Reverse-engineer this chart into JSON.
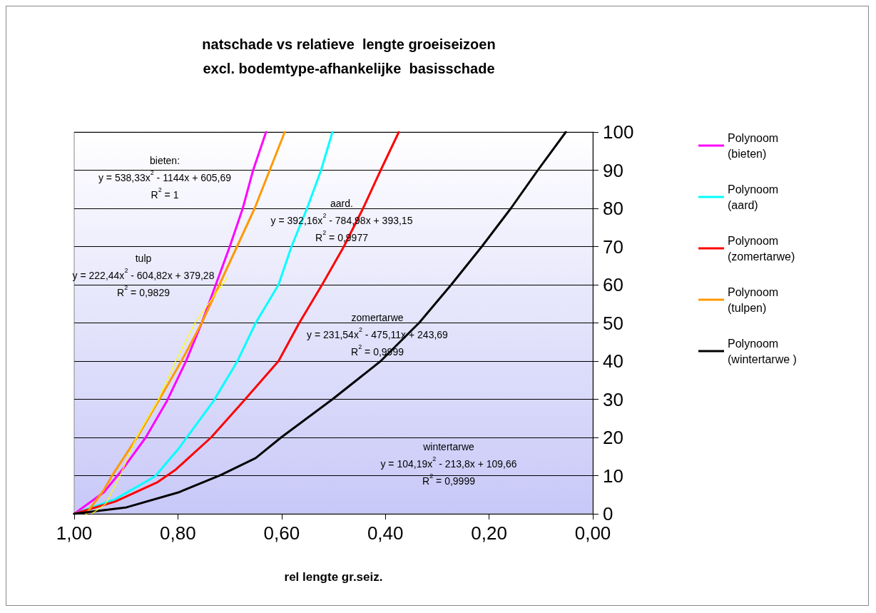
{
  "chart_data": {
    "type": "line",
    "title": "natschade vs relatieve  lengte groeiseizoen",
    "subtitle": "excl. bodemtype-afhankelijke  basisschade",
    "xlabel": "rel lengte gr.seiz.",
    "xlim": [
      1,
      0
    ],
    "xticks": [
      {
        "value": 1,
        "label": "1,00"
      },
      {
        "value": 0.8,
        "label": "0,80"
      },
      {
        "value": 0.6,
        "label": "0,60"
      },
      {
        "value": 0.4,
        "label": "0,40"
      },
      {
        "value": 0.2,
        "label": "0,20"
      },
      {
        "value": 0,
        "label": "0,00"
      }
    ],
    "ylim": [
      0,
      100
    ],
    "yticks": [
      0,
      10,
      20,
      30,
      40,
      50,
      60,
      70,
      80,
      90,
      100
    ],
    "grid": "y",
    "legend": "right",
    "marker": "none",
    "line_style": "solid",
    "series": [
      {
        "name": "Polynoom (bieten)",
        "color": "#ff00ff",
        "x": [
          1,
          0.943,
          0.907,
          0.862,
          0.821,
          0.785,
          0.754,
          0.727,
          0.7,
          0.675,
          0.655,
          0.63
        ],
        "values": [
          0,
          5.6,
          11.6,
          20,
          29.6,
          39.8,
          50,
          60,
          70,
          80,
          90,
          100
        ]
      },
      {
        "name": "Polynoom (aard)",
        "color": "#00ffff",
        "x": [
          1,
          0.921,
          0.844,
          0.799,
          0.731,
          0.686,
          0.65,
          0.606,
          0.581,
          0.551,
          0.524,
          0.502
        ],
        "values": [
          0,
          3.8,
          9.8,
          17,
          29.6,
          39.8,
          50,
          60,
          70,
          80,
          90,
          100
        ]
      },
      {
        "name": "Polynoom (zomertarwe)",
        "color": "#ff0000",
        "x": [
          1,
          0.921,
          0.839,
          0.804,
          0.736,
          0.673,
          0.606,
          0.566,
          0.522,
          0.48,
          0.443,
          0.409,
          0.374
        ],
        "values": [
          0,
          3.2,
          8.3,
          11.6,
          20,
          29.6,
          40,
          50,
          60,
          70,
          80,
          90,
          100
        ]
      },
      {
        "name": "Polynoom (tulpen)",
        "color": "#ff9900",
        "x": [
          0.977,
          0.943,
          0.925,
          0.876,
          0.835,
          0.794,
          0.754,
          0.72,
          0.686,
          0.652,
          0.623,
          0.594
        ],
        "values": [
          0,
          6.2,
          10.4,
          20.6,
          30.2,
          39.8,
          50,
          60,
          70,
          80,
          90,
          100
        ]
      },
      {
        "name": "Polynoom (wintertarwe )",
        "color": "#000000",
        "x": [
          1,
          0.899,
          0.799,
          0.718,
          0.65,
          0.601,
          0.502,
          0.409,
          0.335,
          0.273,
          0.214,
          0.158,
          0.106,
          0.052
        ],
        "values": [
          0,
          1.7,
          5.6,
          10.1,
          14.6,
          20,
          30,
          40,
          50,
          60,
          70,
          80,
          90,
          100
        ]
      },
      {
        "color": "#ffff00",
        "x": [
          0.966,
          0.939,
          0.912,
          0.88,
          0.839,
          0.804,
          0.767,
          0.736,
          0.704
        ],
        "values": [
          0,
          2.6,
          9.8,
          20,
          29.6,
          40,
          50,
          56,
          62
        ]
      }
    ],
    "annotations": [
      "bieten:\ny = 538,33x$^{2}$ - 1144x + 605,69\nR$^{2}$ = 1",
      "aard.\ny = 392,16x$^{2}$ - 784,98x + 393,15\nR$^{2}$ = 0,9977",
      "tulp\ny = 222,44x$^{2}$ - 604,82x + 379,28\nR$^{2}$ = 0,9829",
      "zomertarwe\ny = 231,54x$^{2}$ - 475,11x + 243,69\nR$^{2}$ = 0,9999",
      "wintertarwe\ny = 104,19x$^{2}$ - 213,8x + 109,66\nR$^{2}$ = 0,9999"
    ]
  }
}
